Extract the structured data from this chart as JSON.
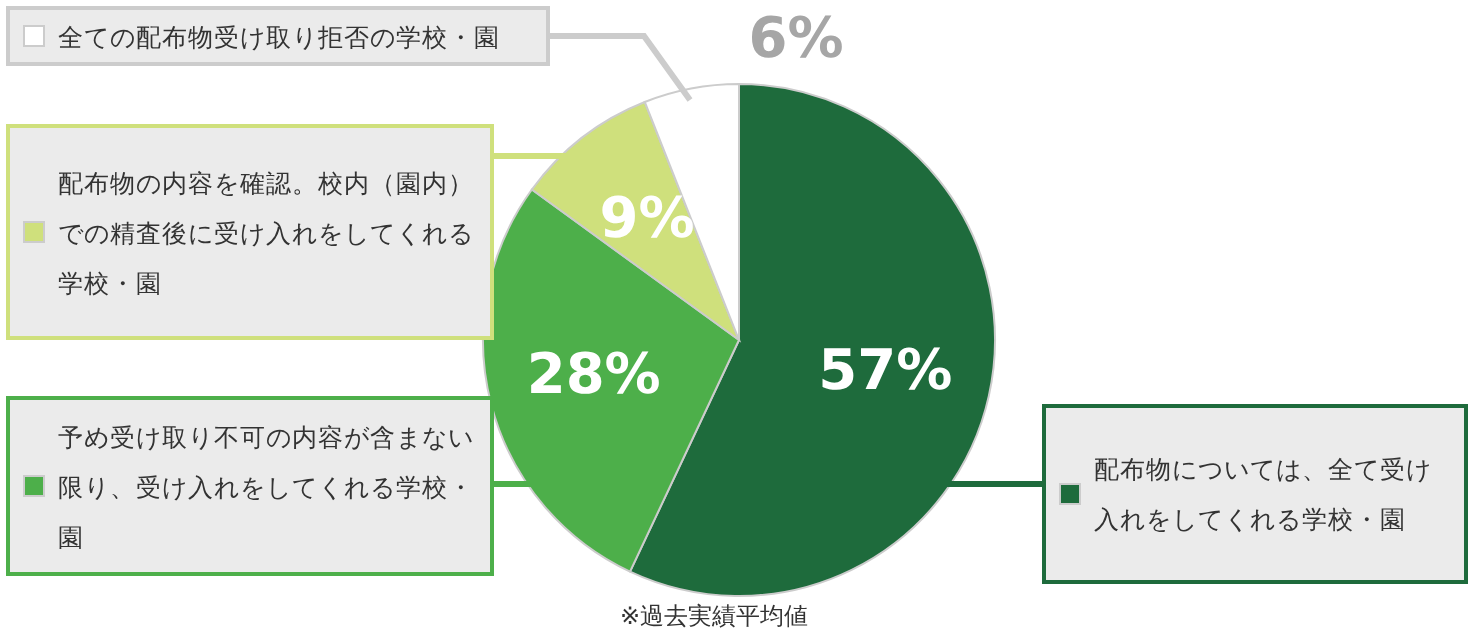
{
  "chart_data": {
    "type": "pie",
    "categories": [
      "配布物については、全て受け入れをしてくれる学校・園",
      "予め受け取り不可の内容が含まない限り、受け入れをしてくれる学校・園",
      "配布物の内容を確認。校内（園内）での精査後に受け入れをしてくれる学校・園",
      "全ての配布物受け取り拒否の学校・園"
    ],
    "values": [
      57,
      28,
      9,
      6
    ],
    "colors": [
      "#1e6b3c",
      "#4daf4a",
      "#cfe07c",
      "#ffffff"
    ],
    "value_labels": [
      "57%",
      "28%",
      "9%",
      "6%"
    ],
    "annotations": [
      "※過去実績平均値"
    ],
    "legend": "left"
  }
}
